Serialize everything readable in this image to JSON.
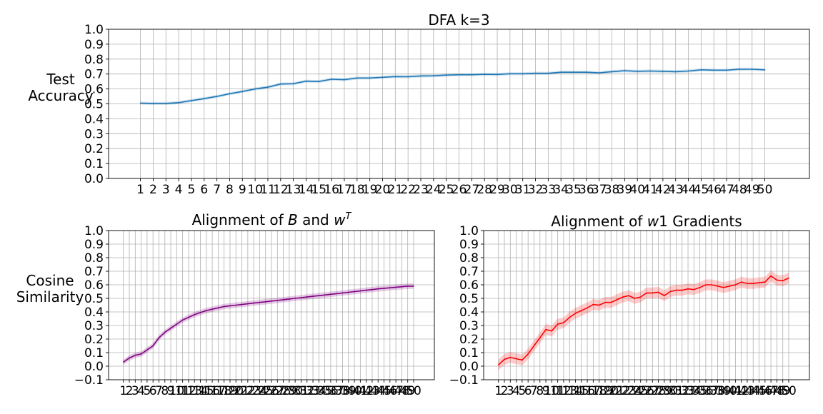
{
  "chart_data": [
    {
      "type": "line",
      "title": "DFA k=3",
      "ylabel": "Test\nAccuracy",
      "xlabel": "",
      "x": [
        1,
        2,
        3,
        4,
        5,
        6,
        7,
        8,
        9,
        10,
        11,
        12,
        13,
        14,
        15,
        16,
        17,
        18,
        19,
        20,
        21,
        22,
        23,
        24,
        25,
        26,
        27,
        28,
        29,
        30,
        31,
        32,
        33,
        34,
        35,
        36,
        37,
        38,
        39,
        40,
        41,
        42,
        43,
        44,
        45,
        46,
        47,
        48,
        49,
        50
      ],
      "xlim": [
        -1.5,
        53.5
      ],
      "ylim": [
        0.0,
        1.0
      ],
      "yticks": [
        0.0,
        0.1,
        0.2,
        0.3,
        0.4,
        0.5,
        0.6,
        0.7,
        0.8,
        0.9,
        1.0
      ],
      "grid": true,
      "series": [
        {
          "color": "#1f77b4",
          "values": [
            0.505,
            0.503,
            0.503,
            0.508,
            0.522,
            0.535,
            0.55,
            0.568,
            0.583,
            0.6,
            0.612,
            0.633,
            0.635,
            0.652,
            0.65,
            0.665,
            0.662,
            0.673,
            0.673,
            0.678,
            0.683,
            0.682,
            0.687,
            0.688,
            0.693,
            0.695,
            0.695,
            0.698,
            0.697,
            0.702,
            0.702,
            0.705,
            0.705,
            0.712,
            0.712,
            0.712,
            0.708,
            0.716,
            0.722,
            0.718,
            0.72,
            0.718,
            0.716,
            0.72,
            0.728,
            0.726,
            0.726,
            0.732,
            0.732,
            0.728
          ],
          "band": 0.01
        }
      ]
    },
    {
      "type": "line",
      "title": "Alignment of B and wT",
      "title_parts": [
        "Alignment of ",
        "B",
        " and ",
        "w",
        "T"
      ],
      "ylabel": "Cosine\nSimilarity",
      "xlabel": "",
      "x": [
        1,
        2,
        3,
        4,
        5,
        6,
        7,
        8,
        9,
        10,
        11,
        12,
        13,
        14,
        15,
        16,
        17,
        18,
        19,
        20,
        21,
        22,
        23,
        24,
        25,
        26,
        27,
        28,
        29,
        30,
        31,
        32,
        33,
        34,
        35,
        36,
        37,
        38,
        39,
        40,
        41,
        42,
        43,
        44,
        45,
        46,
        47,
        48,
        49,
        50
      ],
      "xlim": [
        -1.5,
        53.5
      ],
      "ylim": [
        -0.1,
        1.0
      ],
      "yticks": [
        -0.1,
        0.0,
        0.1,
        0.2,
        0.3,
        0.4,
        0.5,
        0.6,
        0.7,
        0.8,
        0.9,
        1.0
      ],
      "grid": true,
      "series": [
        {
          "color": "#800080",
          "values": [
            0.03,
            0.06,
            0.08,
            0.09,
            0.12,
            0.15,
            0.21,
            0.25,
            0.28,
            0.31,
            0.34,
            0.36,
            0.38,
            0.395,
            0.41,
            0.42,
            0.43,
            0.44,
            0.445,
            0.45,
            0.455,
            0.46,
            0.465,
            0.47,
            0.475,
            0.48,
            0.485,
            0.49,
            0.495,
            0.5,
            0.505,
            0.51,
            0.515,
            0.52,
            0.525,
            0.53,
            0.535,
            0.54,
            0.545,
            0.55,
            0.555,
            0.56,
            0.565,
            0.57,
            0.574,
            0.578,
            0.582,
            0.586,
            0.59,
            0.59
          ],
          "band": 0.02
        }
      ]
    },
    {
      "type": "line",
      "title": "Alignment of w1 Gradients",
      "title_parts": [
        "Alignment of ",
        "w",
        "1 Gradients"
      ],
      "ylabel": "",
      "xlabel": "",
      "x": [
        1,
        2,
        3,
        4,
        5,
        6,
        7,
        8,
        9,
        10,
        11,
        12,
        13,
        14,
        15,
        16,
        17,
        18,
        19,
        20,
        21,
        22,
        23,
        24,
        25,
        26,
        27,
        28,
        29,
        30,
        31,
        32,
        33,
        34,
        35,
        36,
        37,
        38,
        39,
        40,
        41,
        42,
        43,
        44,
        45,
        46,
        47,
        48,
        49,
        50
      ],
      "xlim": [
        -1.5,
        53.5
      ],
      "ylim": [
        -0.1,
        1.0
      ],
      "yticks": [
        -0.1,
        0.0,
        0.1,
        0.2,
        0.3,
        0.4,
        0.5,
        0.6,
        0.7,
        0.8,
        0.9,
        1.0
      ],
      "grid": true,
      "series": [
        {
          "color": "#ff0000",
          "values": [
            0.01,
            0.05,
            0.065,
            0.055,
            0.045,
            0.09,
            0.15,
            0.21,
            0.27,
            0.26,
            0.31,
            0.32,
            0.36,
            0.39,
            0.41,
            0.43,
            0.455,
            0.45,
            0.47,
            0.47,
            0.49,
            0.51,
            0.52,
            0.5,
            0.51,
            0.54,
            0.54,
            0.545,
            0.52,
            0.55,
            0.56,
            0.56,
            0.57,
            0.565,
            0.58,
            0.6,
            0.6,
            0.59,
            0.58,
            0.59,
            0.6,
            0.62,
            0.61,
            0.61,
            0.615,
            0.62,
            0.665,
            0.635,
            0.63,
            0.65
          ],
          "band": 0.04
        }
      ]
    }
  ]
}
